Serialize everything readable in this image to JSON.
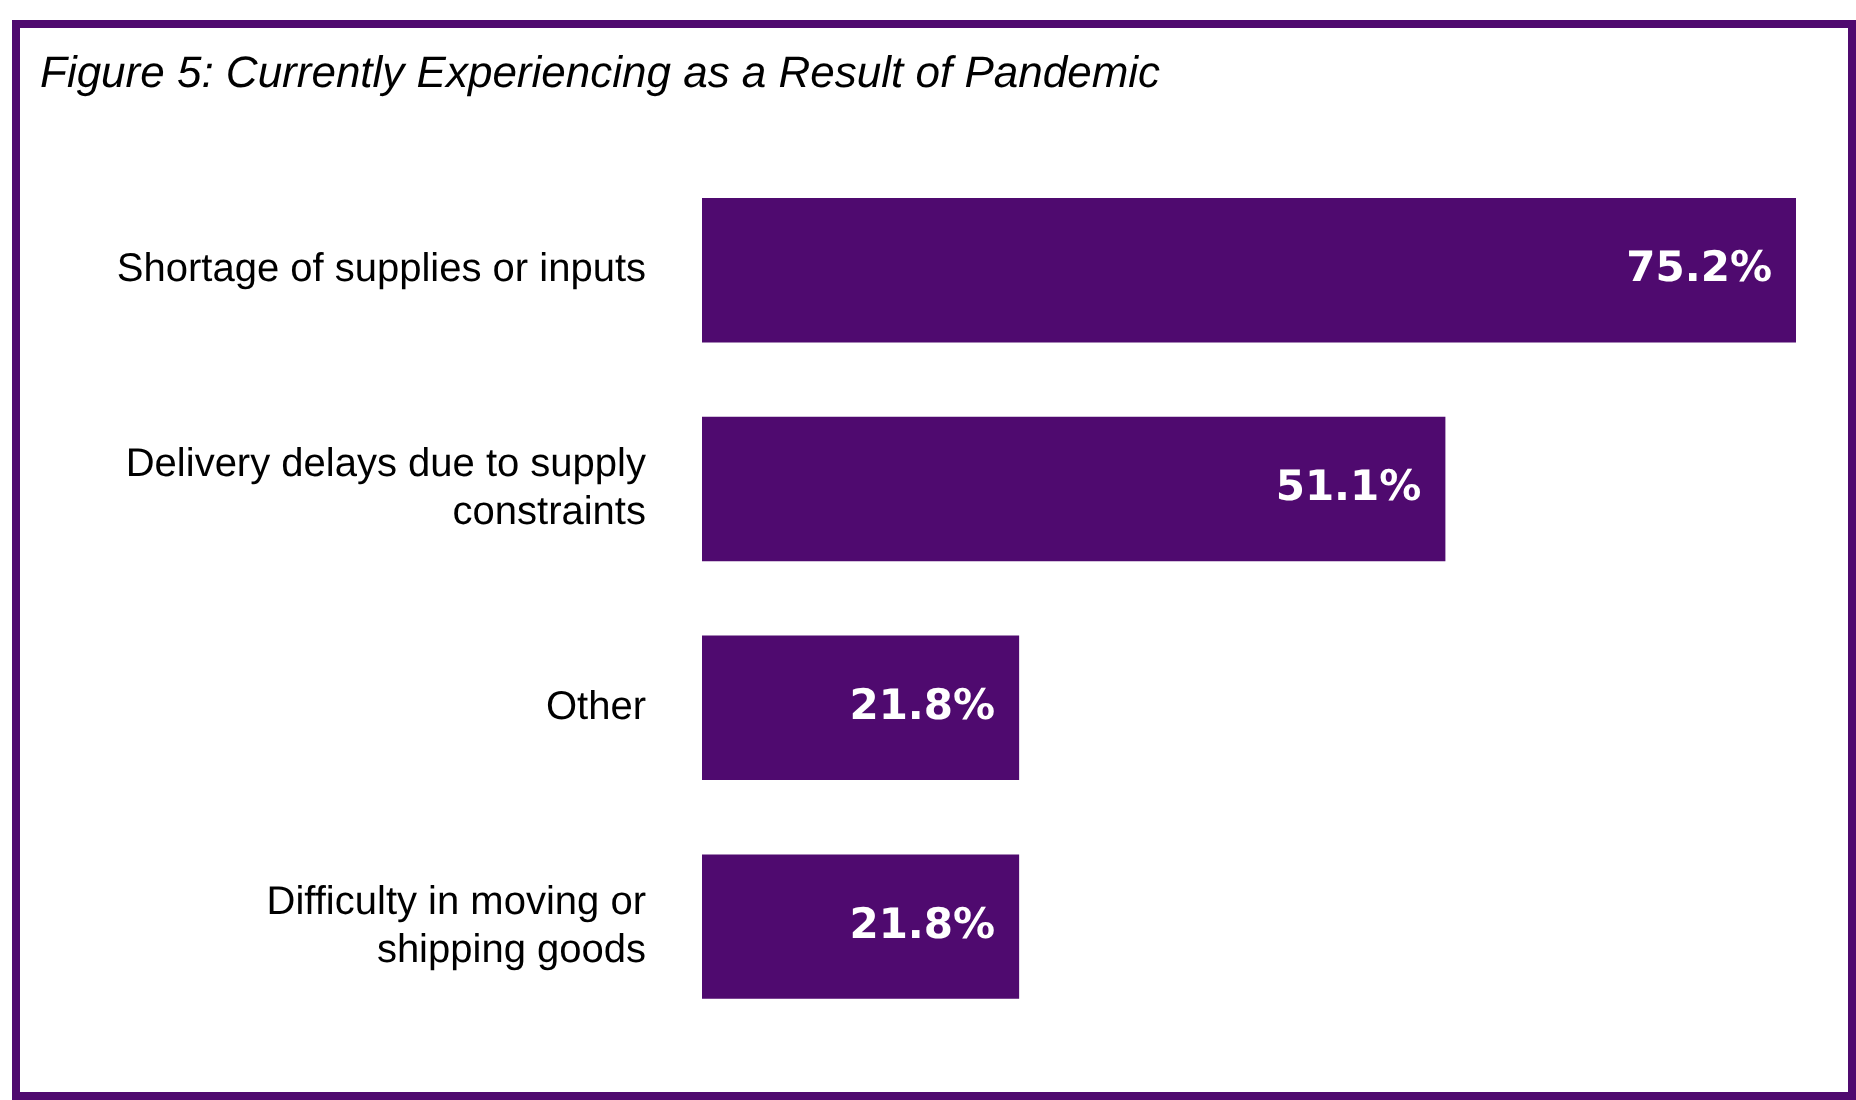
{
  "chart_data": {
    "type": "bar",
    "orientation": "horizontal",
    "title": "Figure 5: Currently Experiencing as a Result of Pandemic",
    "categories": [
      "Shortage of supplies or inputs",
      "Delivery delays due to supply constraints",
      "Other",
      "Difficulty in moving or shipping goods"
    ],
    "values": [
      75.2,
      51.1,
      21.8,
      21.8
    ],
    "value_labels": [
      "75.2%",
      "51.1%",
      "21.8%",
      "21.8%"
    ],
    "color": "#4f0a6f",
    "tick_labels": "y",
    "legend": false
  }
}
